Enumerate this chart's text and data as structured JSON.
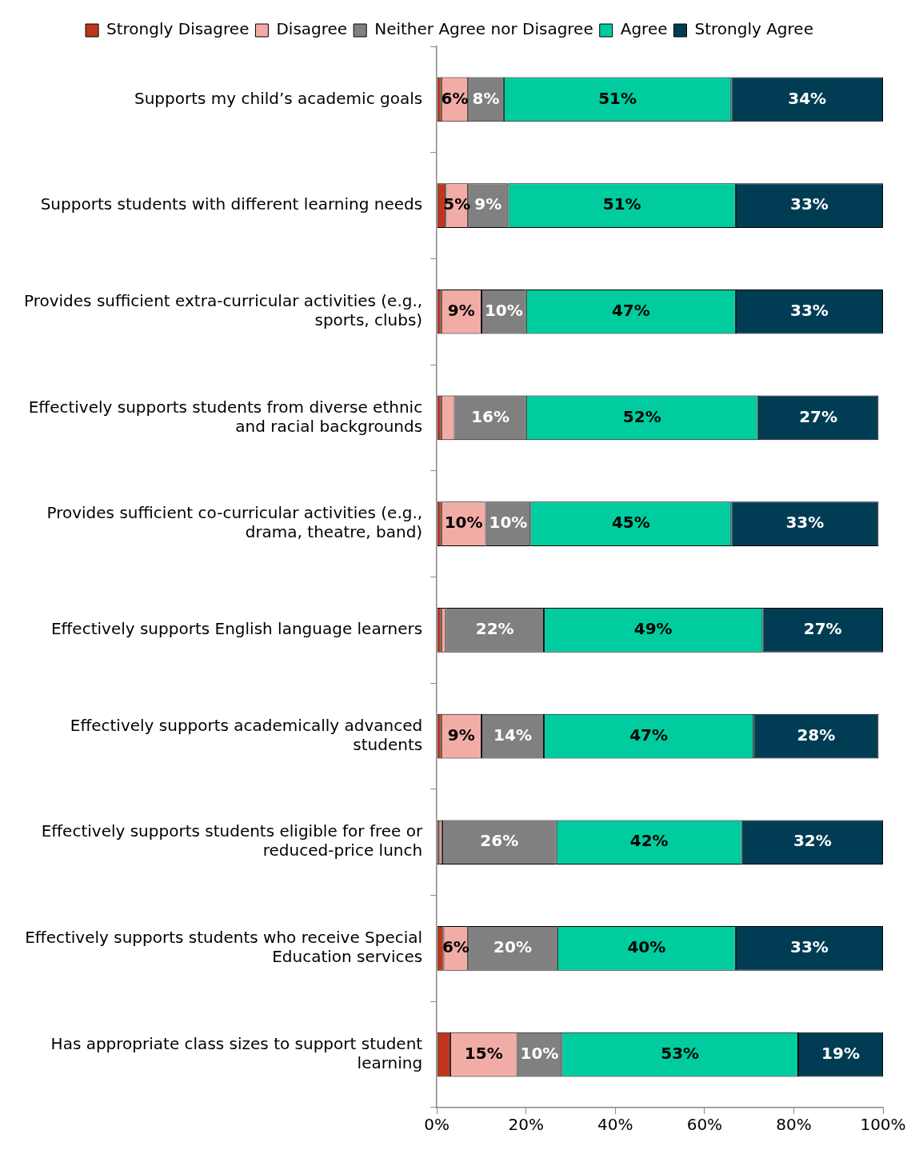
{
  "chart_data": {
    "type": "bar",
    "orientation": "horizontal",
    "stacked": true,
    "legend": "top",
    "grid": false,
    "categories": [
      "Supports my child’s academic goals",
      "Supports students with different learning needs",
      "Provides sufficient extra-curricular activities (e.g., sports, clubs)",
      "Effectively supports students from diverse ethnic and racial backgrounds",
      "Provides sufficient co-curricular activities (e.g., drama, theatre, band)",
      "Effectively supports English language learners",
      "Effectively supports academically advanced students",
      "Effectively supports students eligible for free or reduced-price lunch",
      "Effectively supports students who receive Special Education services",
      "Has appropriate class sizes to support student learning"
    ],
    "xlim": [
      0,
      100
    ],
    "xticks": [
      {
        "value": 0,
        "label": "0%"
      },
      {
        "value": 20,
        "label": "20%"
      },
      {
        "value": 40,
        "label": "40%"
      },
      {
        "value": 60,
        "label": "60%"
      },
      {
        "value": 80,
        "label": "80%"
      },
      {
        "value": 100,
        "label": "100%"
      }
    ],
    "series": [
      {
        "name": "Strongly Disagree",
        "color": "#c0361c",
        "values": [
          1,
          2,
          1,
          1,
          1,
          1,
          1,
          0.6,
          1.5,
          3
        ],
        "value_labels": [
          null,
          null,
          null,
          null,
          null,
          null,
          null,
          null,
          null,
          null
        ]
      },
      {
        "name": "Disagree",
        "color": "#f2aca6",
        "values": [
          6,
          5,
          9,
          3,
          10,
          1,
          9,
          0.6,
          5.5,
          15
        ],
        "value_labels": [
          "6%",
          "5%",
          "9%",
          null,
          "10%",
          null,
          "9%",
          null,
          "6%",
          "15%"
        ]
      },
      {
        "name": "Neither Agree nor Disagree",
        "color": "#808080",
        "values": [
          8,
          9,
          10,
          16,
          10,
          22,
          14,
          25.6,
          20,
          10
        ],
        "value_labels": [
          "8%",
          "9%",
          "10%",
          "16%",
          "10%",
          "22%",
          "14%",
          "26%",
          "20%",
          "10%"
        ]
      },
      {
        "name": "Agree",
        "color": "#00cc9f",
        "values": [
          51,
          51,
          47,
          52,
          45,
          49,
          47,
          41.6,
          40,
          53
        ],
        "value_labels": [
          "51%",
          "51%",
          "47%",
          "52%",
          "45%",
          "49%",
          "47%",
          "42%",
          "40%",
          "53%"
        ]
      },
      {
        "name": "Strongly Agree",
        "color": "#003d54",
        "values": [
          34,
          33,
          33,
          27,
          33,
          27,
          28,
          31.6,
          33,
          19
        ],
        "value_labels": [
          "34%",
          "33%",
          "33%",
          "27%",
          "33%",
          "27%",
          "28%",
          "32%",
          "33%",
          "19%"
        ]
      }
    ]
  }
}
